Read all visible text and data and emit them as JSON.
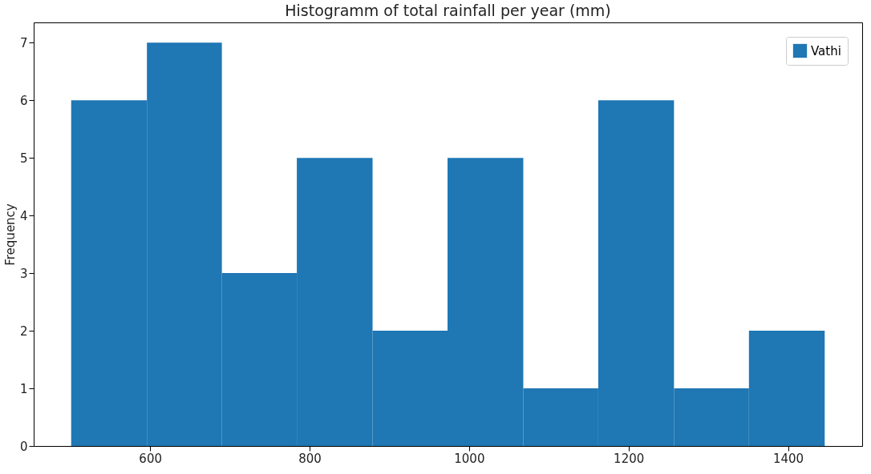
{
  "chart_data": {
    "type": "histogram",
    "title": "Histogramm of total rainfall per year (mm)",
    "ylabel": "Frequency",
    "bins": [
      501,
      596,
      690,
      784,
      879,
      973,
      1068,
      1162,
      1257,
      1351,
      1446
    ],
    "series": [
      {
        "name": "Vathi",
        "color": "#1f77b4",
        "values": [
          6,
          7,
          3,
          5,
          2,
          5,
          1,
          6,
          1,
          2
        ]
      }
    ],
    "xlim": [
      454,
      1493
    ],
    "xticks": [
      600,
      800,
      1000,
      1200,
      1400
    ],
    "ylim": [
      0,
      7.35
    ],
    "yticks": [
      0,
      1,
      2,
      3,
      4,
      5,
      6,
      7
    ],
    "grid": false,
    "legend": "top right"
  }
}
